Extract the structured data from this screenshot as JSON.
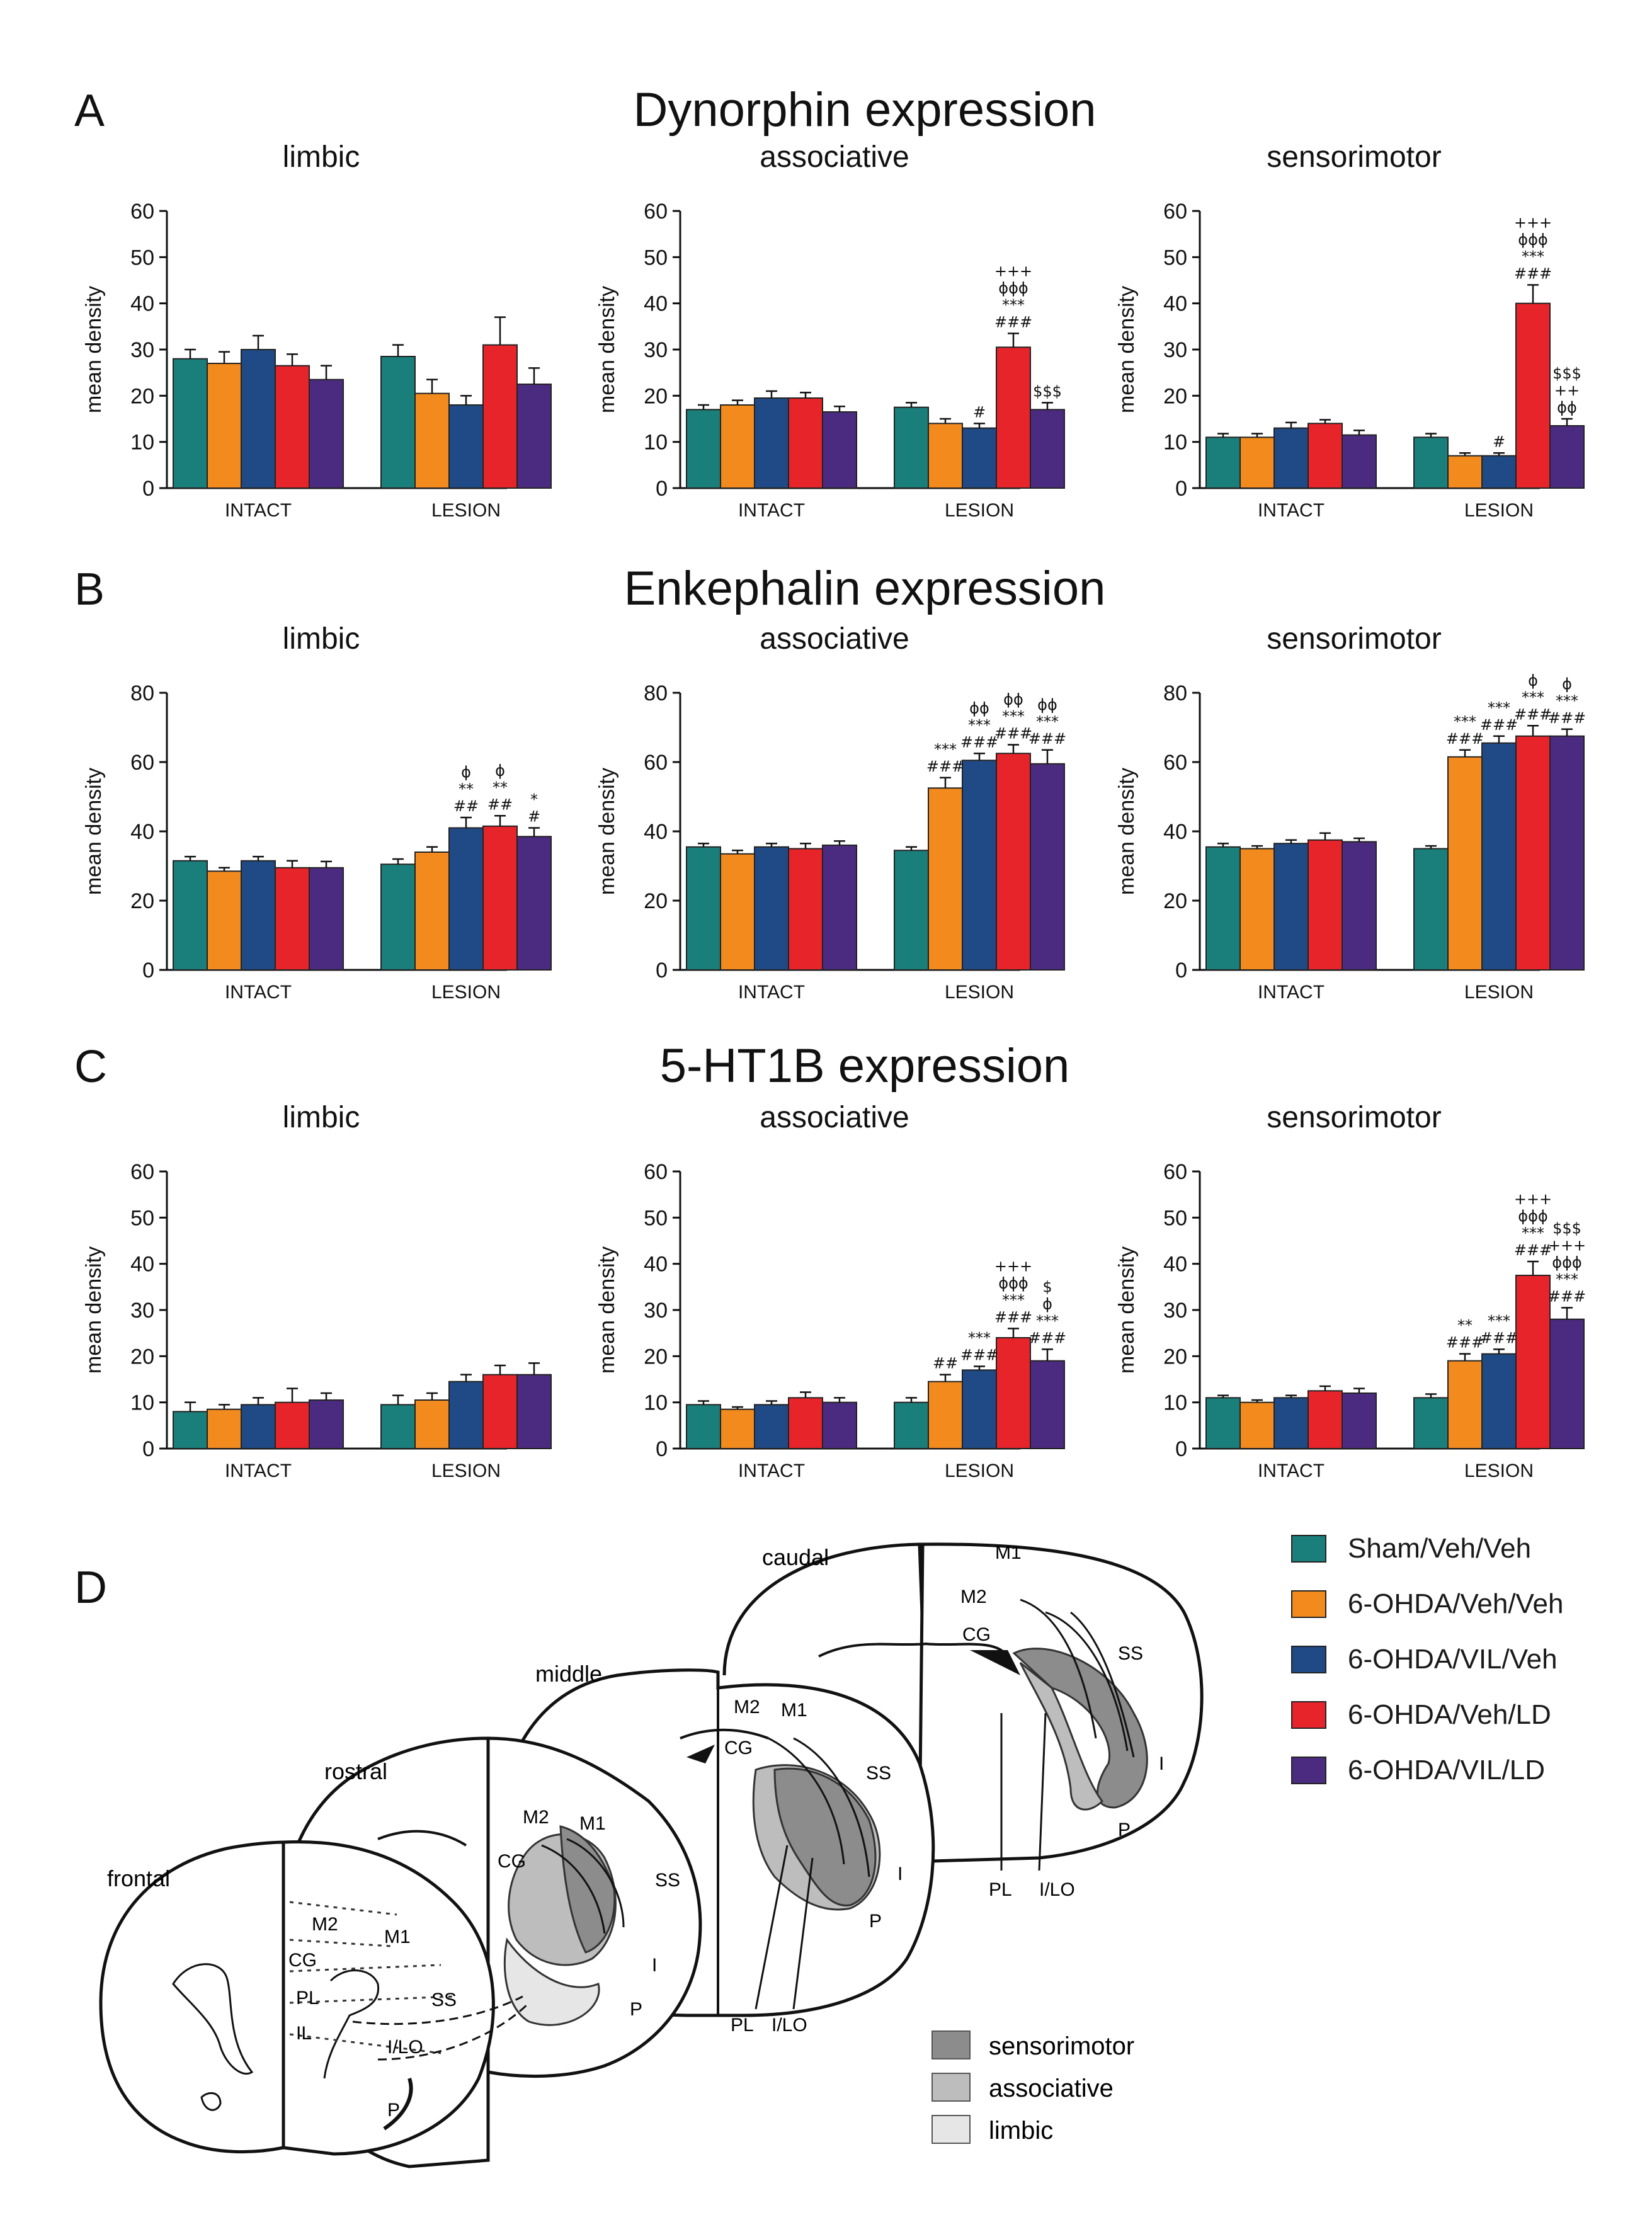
{
  "figure": {
    "series": [
      {
        "name": "Sham/Veh/Veh",
        "color": "#1a7f7a"
      },
      {
        "name": "6-OHDA/Veh/Veh",
        "color": "#f28a1e"
      },
      {
        "name": "6-OHDA/VIL/Veh",
        "color": "#1f4a85"
      },
      {
        "name": "6-OHDA/Veh/LD",
        "color": "#e8242b"
      },
      {
        "name": "6-OHDA/VIL/LD",
        "color": "#4b2b7f"
      }
    ],
    "panel_d": {
      "letter": "D",
      "section_labels": [
        "frontal",
        "rostral",
        "middle",
        "caudal"
      ],
      "region_labels": [
        "M1",
        "M2",
        "CG",
        "SS",
        "PL",
        "IL",
        "I/LO",
        "I",
        "P"
      ],
      "zone_legend": [
        {
          "name": "sensorimotor",
          "color": "#8c8c8c"
        },
        {
          "name": "associative",
          "color": "#bdbdbd"
        },
        {
          "name": "limbic",
          "color": "#e6e6e6"
        }
      ]
    }
  },
  "chart_data": [
    {
      "type": "bar",
      "panel": "A",
      "panel_title": "Dynorphin expression",
      "title": "limbic",
      "ylabel": "mean density",
      "ylim": [
        0,
        60
      ],
      "yticks": [
        0,
        10,
        20,
        30,
        40,
        50,
        60
      ],
      "categories": [
        "INTACT",
        "LESION"
      ],
      "series": [
        {
          "name": "Sham/Veh/Veh",
          "values": [
            28,
            28.5
          ],
          "errors": [
            2,
            2.5
          ]
        },
        {
          "name": "6-OHDA/Veh/Veh",
          "values": [
            27,
            20.5
          ],
          "errors": [
            2.5,
            3
          ]
        },
        {
          "name": "6-OHDA/VIL/Veh",
          "values": [
            30,
            18
          ],
          "errors": [
            3,
            2
          ]
        },
        {
          "name": "6-OHDA/Veh/LD",
          "values": [
            26.5,
            31
          ],
          "errors": [
            2.5,
            6
          ]
        },
        {
          "name": "6-OHDA/VIL/LD",
          "values": [
            23.5,
            22.5
          ],
          "errors": [
            3,
            3.5
          ]
        }
      ],
      "annotations": []
    },
    {
      "type": "bar",
      "panel": "A",
      "title": "associative",
      "ylabel": "mean density",
      "ylim": [
        0,
        60
      ],
      "yticks": [
        0,
        10,
        20,
        30,
        40,
        50,
        60
      ],
      "categories": [
        "INTACT",
        "LESION"
      ],
      "series": [
        {
          "name": "Sham/Veh/Veh",
          "values": [
            17,
            17.5
          ],
          "errors": [
            1,
            1
          ]
        },
        {
          "name": "6-OHDA/Veh/Veh",
          "values": [
            18,
            14
          ],
          "errors": [
            1,
            1
          ]
        },
        {
          "name": "6-OHDA/VIL/Veh",
          "values": [
            19.5,
            13
          ],
          "errors": [
            1.5,
            1
          ]
        },
        {
          "name": "6-OHDA/Veh/LD",
          "values": [
            19.5,
            30.5
          ],
          "errors": [
            1.2,
            3
          ]
        },
        {
          "name": "6-OHDA/VIL/LD",
          "values": [
            16.5,
            17
          ],
          "errors": [
            1.2,
            1.5
          ]
        }
      ],
      "annotations": [
        {
          "series": 2,
          "category": 1,
          "lines": [
            "#"
          ]
        },
        {
          "series": 3,
          "category": 1,
          "lines": [
            "+++",
            "ϕϕϕ",
            "***",
            "###"
          ]
        },
        {
          "series": 4,
          "category": 1,
          "lines": [
            "$$$"
          ]
        }
      ]
    },
    {
      "type": "bar",
      "panel": "A",
      "title": "sensorimotor",
      "ylabel": "mean density",
      "ylim": [
        0,
        60
      ],
      "yticks": [
        0,
        10,
        20,
        30,
        40,
        50,
        60
      ],
      "categories": [
        "INTACT",
        "LESION"
      ],
      "series": [
        {
          "name": "Sham/Veh/Veh",
          "values": [
            11,
            11
          ],
          "errors": [
            0.8,
            0.8
          ]
        },
        {
          "name": "6-OHDA/Veh/Veh",
          "values": [
            11,
            7
          ],
          "errors": [
            0.8,
            0.6
          ]
        },
        {
          "name": "6-OHDA/VIL/Veh",
          "values": [
            13,
            7
          ],
          "errors": [
            1.2,
            0.6
          ]
        },
        {
          "name": "6-OHDA/Veh/LD",
          "values": [
            14,
            40
          ],
          "errors": [
            0.8,
            4
          ]
        },
        {
          "name": "6-OHDA/VIL/LD",
          "values": [
            11.5,
            13.5
          ],
          "errors": [
            1,
            1.5
          ]
        }
      ],
      "annotations": [
        {
          "series": 2,
          "category": 1,
          "lines": [
            "#"
          ]
        },
        {
          "series": 3,
          "category": 1,
          "lines": [
            "+++",
            "ϕϕϕ",
            "***",
            "###"
          ]
        },
        {
          "series": 4,
          "category": 1,
          "lines": [
            "$$$",
            "++",
            "ϕϕ"
          ]
        }
      ]
    },
    {
      "type": "bar",
      "panel": "B",
      "panel_title": "Enkephalin expression",
      "title": "limbic",
      "ylabel": "mean density",
      "ylim": [
        0,
        80
      ],
      "yticks": [
        0,
        20,
        40,
        60,
        80
      ],
      "categories": [
        "INTACT",
        "LESION"
      ],
      "series": [
        {
          "name": "Sham/Veh/Veh",
          "values": [
            31.5,
            30.5
          ],
          "errors": [
            1.2,
            1.5
          ]
        },
        {
          "name": "6-OHDA/Veh/Veh",
          "values": [
            28.5,
            34
          ],
          "errors": [
            1,
            1.5
          ]
        },
        {
          "name": "6-OHDA/VIL/Veh",
          "values": [
            31.5,
            41
          ],
          "errors": [
            1.2,
            3
          ]
        },
        {
          "name": "6-OHDA/Veh/LD",
          "values": [
            29.5,
            41.5
          ],
          "errors": [
            2,
            3
          ]
        },
        {
          "name": "6-OHDA/VIL/LD",
          "values": [
            29.5,
            38.5
          ],
          "errors": [
            1.8,
            2.5
          ]
        }
      ],
      "annotations": [
        {
          "series": 2,
          "category": 1,
          "lines": [
            "ϕ",
            "**",
            "##"
          ]
        },
        {
          "series": 3,
          "category": 1,
          "lines": [
            "ϕ",
            "**",
            "##"
          ]
        },
        {
          "series": 4,
          "category": 1,
          "lines": [
            "*",
            "#"
          ]
        }
      ]
    },
    {
      "type": "bar",
      "panel": "B",
      "title": "associative",
      "ylabel": "mean density",
      "ylim": [
        0,
        80
      ],
      "yticks": [
        0,
        20,
        40,
        60,
        80
      ],
      "categories": [
        "INTACT",
        "LESION"
      ],
      "series": [
        {
          "name": "Sham/Veh/Veh",
          "values": [
            35.5,
            34.5
          ],
          "errors": [
            1,
            1
          ]
        },
        {
          "name": "6-OHDA/Veh/Veh",
          "values": [
            33.5,
            52.5
          ],
          "errors": [
            1,
            3
          ]
        },
        {
          "name": "6-OHDA/VIL/Veh",
          "values": [
            35.5,
            60.5
          ],
          "errors": [
            1,
            2
          ]
        },
        {
          "name": "6-OHDA/Veh/LD",
          "values": [
            35,
            62.5
          ],
          "errors": [
            1.5,
            2.5
          ]
        },
        {
          "name": "6-OHDA/VIL/LD",
          "values": [
            36,
            59.5
          ],
          "errors": [
            1.2,
            4
          ]
        }
      ],
      "annotations": [
        {
          "series": 1,
          "category": 1,
          "lines": [
            "***",
            "###"
          ]
        },
        {
          "series": 2,
          "category": 1,
          "lines": [
            "ϕϕ",
            "***",
            "###"
          ]
        },
        {
          "series": 3,
          "category": 1,
          "lines": [
            "ϕϕ",
            "***",
            "###"
          ]
        },
        {
          "series": 4,
          "category": 1,
          "lines": [
            "ϕϕ",
            "***",
            "###"
          ]
        }
      ]
    },
    {
      "type": "bar",
      "panel": "B",
      "title": "sensorimotor",
      "ylabel": "mean density",
      "ylim": [
        0,
        80
      ],
      "yticks": [
        0,
        20,
        40,
        60,
        80
      ],
      "categories": [
        "INTACT",
        "LESION"
      ],
      "series": [
        {
          "name": "Sham/Veh/Veh",
          "values": [
            35.5,
            35
          ],
          "errors": [
            1,
            0.8
          ]
        },
        {
          "name": "6-OHDA/Veh/Veh",
          "values": [
            35,
            61.5
          ],
          "errors": [
            0.8,
            2
          ]
        },
        {
          "name": "6-OHDA/VIL/Veh",
          "values": [
            36.5,
            65.5
          ],
          "errors": [
            1,
            2
          ]
        },
        {
          "name": "6-OHDA/Veh/LD",
          "values": [
            37.5,
            67.5
          ],
          "errors": [
            2,
            3
          ]
        },
        {
          "name": "6-OHDA/VIL/LD",
          "values": [
            37,
            67.5
          ],
          "errors": [
            1,
            2
          ]
        }
      ],
      "annotations": [
        {
          "series": 1,
          "category": 1,
          "lines": [
            "***",
            "###"
          ]
        },
        {
          "series": 2,
          "category": 1,
          "lines": [
            "***",
            "###"
          ]
        },
        {
          "series": 3,
          "category": 1,
          "lines": [
            "ϕ",
            "***",
            "###"
          ]
        },
        {
          "series": 4,
          "category": 1,
          "lines": [
            "ϕ",
            "***",
            "###"
          ]
        }
      ]
    },
    {
      "type": "bar",
      "panel": "C",
      "panel_title": "5-HT1B expression",
      "title": "limbic",
      "ylabel": "mean density",
      "ylim": [
        0,
        60
      ],
      "yticks": [
        0,
        10,
        20,
        30,
        40,
        50,
        60
      ],
      "categories": [
        "INTACT",
        "LESION"
      ],
      "series": [
        {
          "name": "Sham/Veh/Veh",
          "values": [
            8,
            9.5
          ],
          "errors": [
            2,
            2
          ]
        },
        {
          "name": "6-OHDA/Veh/Veh",
          "values": [
            8.5,
            10.5
          ],
          "errors": [
            1,
            1.5
          ]
        },
        {
          "name": "6-OHDA/VIL/Veh",
          "values": [
            9.5,
            14.5
          ],
          "errors": [
            1.5,
            1.5
          ]
        },
        {
          "name": "6-OHDA/Veh/LD",
          "values": [
            10,
            16
          ],
          "errors": [
            3,
            2
          ]
        },
        {
          "name": "6-OHDA/VIL/LD",
          "values": [
            10.5,
            16
          ],
          "errors": [
            1.5,
            2.5
          ]
        }
      ],
      "annotations": []
    },
    {
      "type": "bar",
      "panel": "C",
      "title": "associative",
      "ylabel": "mean density",
      "ylim": [
        0,
        60
      ],
      "yticks": [
        0,
        10,
        20,
        30,
        40,
        50,
        60
      ],
      "categories": [
        "INTACT",
        "LESION"
      ],
      "series": [
        {
          "name": "Sham/Veh/Veh",
          "values": [
            9.5,
            10
          ],
          "errors": [
            0.8,
            1
          ]
        },
        {
          "name": "6-OHDA/Veh/Veh",
          "values": [
            8.5,
            14.5
          ],
          "errors": [
            0.5,
            1.5
          ]
        },
        {
          "name": "6-OHDA/VIL/Veh",
          "values": [
            9.5,
            17
          ],
          "errors": [
            0.8,
            0.8
          ]
        },
        {
          "name": "6-OHDA/Veh/LD",
          "values": [
            11,
            24
          ],
          "errors": [
            1.2,
            2
          ]
        },
        {
          "name": "6-OHDA/VIL/LD",
          "values": [
            10,
            19
          ],
          "errors": [
            1,
            2.5
          ]
        }
      ],
      "annotations": [
        {
          "series": 1,
          "category": 1,
          "lines": [
            "##"
          ]
        },
        {
          "series": 2,
          "category": 1,
          "lines": [
            "***",
            "###"
          ]
        },
        {
          "series": 3,
          "category": 1,
          "lines": [
            "+++",
            "ϕϕϕ",
            "***",
            "###"
          ]
        },
        {
          "series": 4,
          "category": 1,
          "lines": [
            "$",
            "ϕ",
            "***",
            "###"
          ]
        }
      ]
    },
    {
      "type": "bar",
      "panel": "C",
      "title": "sensorimotor",
      "ylabel": "mean density",
      "ylim": [
        0,
        60
      ],
      "yticks": [
        0,
        10,
        20,
        30,
        40,
        50,
        60
      ],
      "categories": [
        "INTACT",
        "LESION"
      ],
      "series": [
        {
          "name": "Sham/Veh/Veh",
          "values": [
            11,
            11
          ],
          "errors": [
            0.5,
            0.8
          ]
        },
        {
          "name": "6-OHDA/Veh/Veh",
          "values": [
            10,
            19
          ],
          "errors": [
            0.5,
            1.5
          ]
        },
        {
          "name": "6-OHDA/VIL/Veh",
          "values": [
            11,
            20.5
          ],
          "errors": [
            0.5,
            1
          ]
        },
        {
          "name": "6-OHDA/Veh/LD",
          "values": [
            12.5,
            37.5
          ],
          "errors": [
            1,
            3
          ]
        },
        {
          "name": "6-OHDA/VIL/LD",
          "values": [
            12,
            28
          ],
          "errors": [
            1,
            2.5
          ]
        }
      ],
      "annotations": [
        {
          "series": 1,
          "category": 1,
          "lines": [
            "**",
            "###"
          ]
        },
        {
          "series": 2,
          "category": 1,
          "lines": [
            "***",
            "###"
          ]
        },
        {
          "series": 3,
          "category": 1,
          "lines": [
            "+++",
            "ϕϕϕ",
            "***",
            "###"
          ]
        },
        {
          "series": 4,
          "category": 1,
          "lines": [
            "$$$",
            "+++",
            "ϕϕϕ",
            "***",
            "###"
          ]
        }
      ]
    }
  ]
}
